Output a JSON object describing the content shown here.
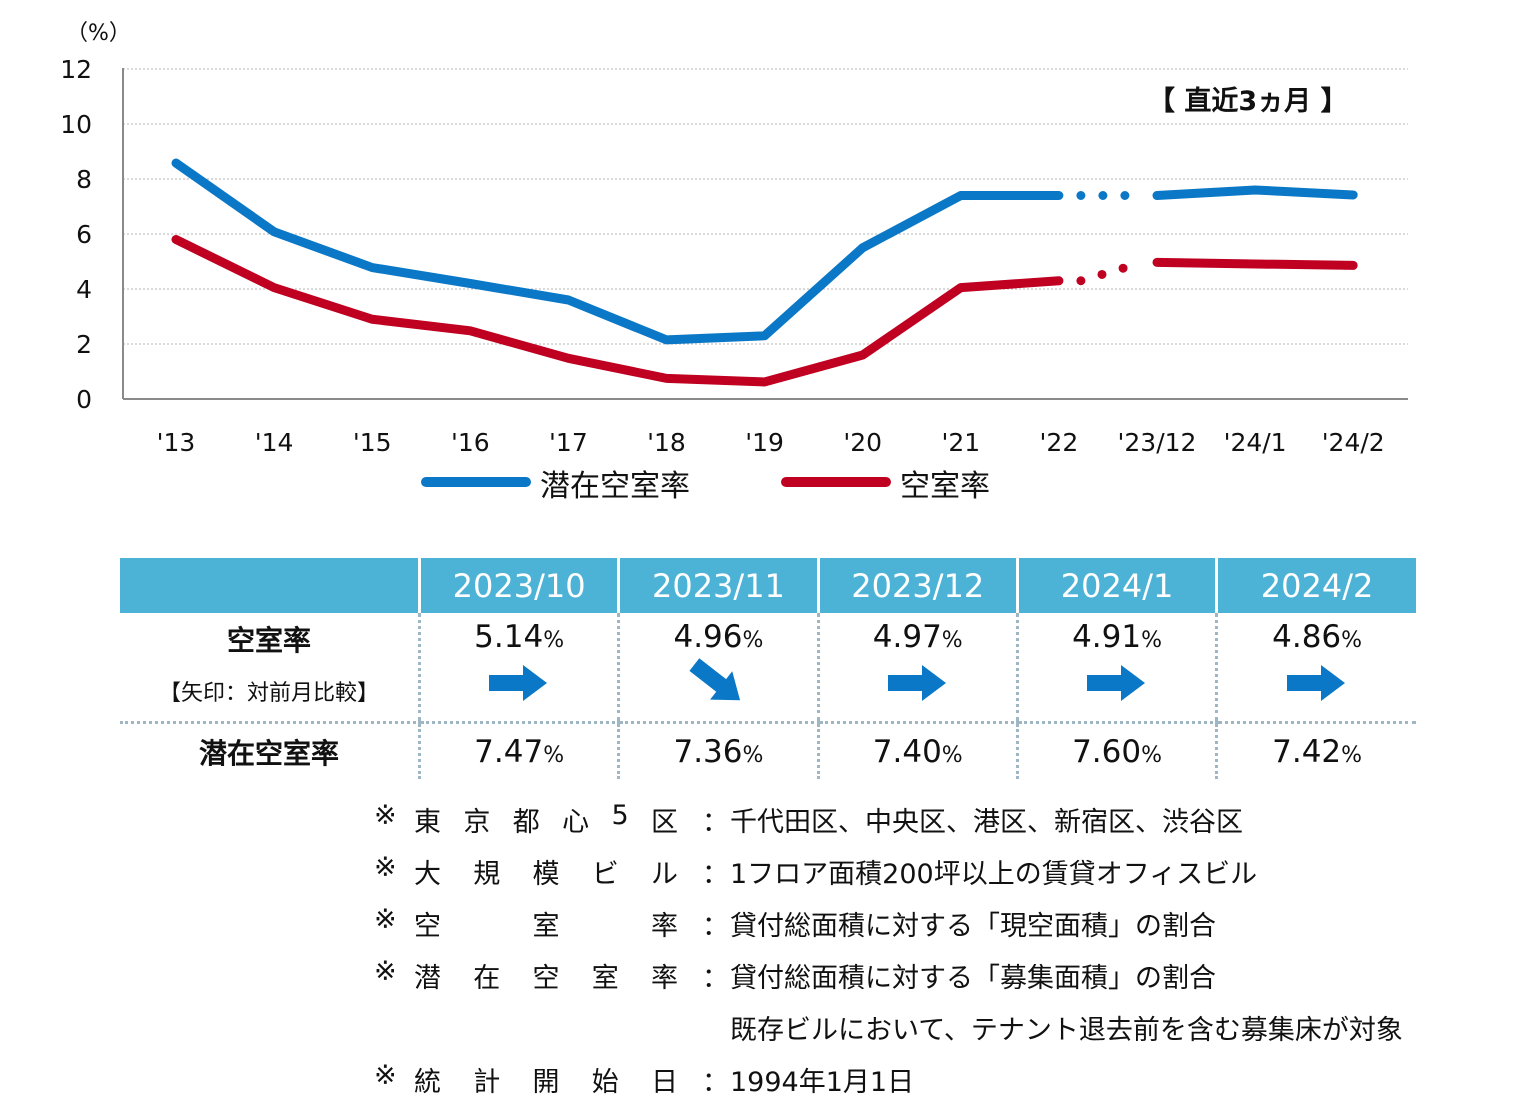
{
  "chart_data": {
    "type": "line",
    "y_unit_label": "（%）",
    "ylim": [
      0,
      12
    ],
    "yticks": [
      0,
      2,
      4,
      6,
      8,
      10,
      12
    ],
    "grid": true,
    "categories": [
      "'13",
      "'14",
      "'15",
      "'16",
      "'17",
      "'18",
      "'19",
      "'20",
      "'21",
      "'22",
      "'23/12",
      "'24/1",
      "'24/2"
    ],
    "annotation": "【 直近3ヵ月 】",
    "series": [
      {
        "name": "潜在空室率",
        "color": "#0a78c6",
        "values": [
          8.58,
          6.08,
          4.78,
          4.2,
          3.6,
          2.15,
          2.3,
          5.5,
          7.4,
          7.4,
          7.4,
          7.6,
          7.42
        ]
      },
      {
        "name": "空室率",
        "color": "#c00021",
        "values": [
          5.8,
          4.05,
          2.9,
          2.48,
          1.48,
          0.75,
          0.62,
          1.6,
          4.05,
          4.3,
          4.97,
          4.91,
          4.86
        ]
      }
    ],
    "solid_segments": [
      [
        0,
        9
      ],
      [
        10,
        12
      ]
    ],
    "dotted_segment": [
      9,
      10
    ]
  },
  "table": {
    "months": [
      "2023/10",
      "2023/11",
      "2023/12",
      "2024/1",
      "2024/2"
    ],
    "row1_label": "空室率",
    "row1_sublabel": "【矢印：対前月比較】",
    "row2_label": "潜在空室率",
    "vacancy": [
      "5.14",
      "4.96",
      "4.97",
      "4.91",
      "4.86"
    ],
    "arrows": [
      "right",
      "down-right",
      "right",
      "right",
      "right"
    ],
    "potential": [
      "7.47",
      "7.36",
      "7.40",
      "7.60",
      "7.42"
    ],
    "unit": "%",
    "arrow_color": "#0a78c6"
  },
  "notes": [
    {
      "mark": "※",
      "key": "東京都心5区",
      "colon": "：",
      "desc": "千代田区、中央区、港区、新宿区、渋谷区"
    },
    {
      "mark": "※",
      "key": "大規模ビル",
      "colon": "：",
      "desc": "1フロア面積200坪以上の賃貸オフィスビル"
    },
    {
      "mark": "※",
      "key": "空室率",
      "colon": "：",
      "desc": "貸付総面積に対する「現空面積」の割合"
    },
    {
      "mark": "※",
      "key": "潜在空室率",
      "colon": "：",
      "desc": "貸付総面積に対する「募集面積」の割合"
    },
    {
      "mark": "",
      "key": "",
      "colon": "",
      "desc": "既存ビルにおいて、テナント退去前を含む募集床が対象"
    },
    {
      "mark": "※",
      "key": "統計開始日",
      "colon": "：",
      "desc": "1994年1月1日"
    }
  ]
}
